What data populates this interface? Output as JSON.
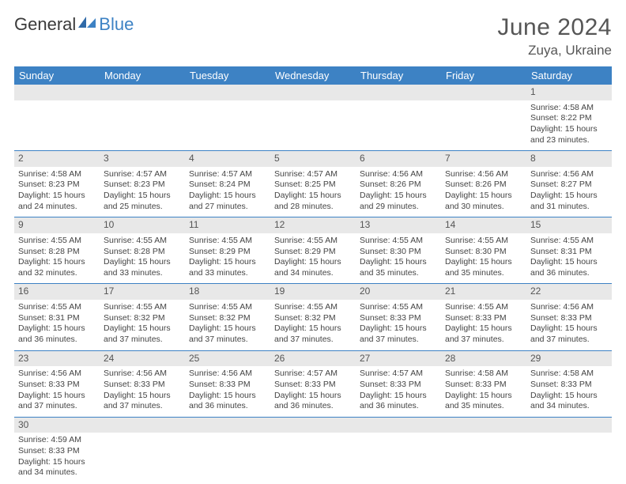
{
  "brand": {
    "name1": "General",
    "name2": "Blue"
  },
  "title": "June 2024",
  "location": "Zuya, Ukraine",
  "colors": {
    "header_bg": "#3d82c4",
    "header_text": "#ffffff",
    "daynum_bg": "#e8e8e8",
    "row_divider": "#3d82c4",
    "text": "#444444",
    "title_color": "#565656"
  },
  "typography": {
    "title_fontsize": 30,
    "location_fontsize": 17,
    "dayhead_fontsize": 13,
    "daynum_fontsize": 12,
    "cell_fontsize": 10.5,
    "font_family": "Arial"
  },
  "day_headers": [
    "Sunday",
    "Monday",
    "Tuesday",
    "Wednesday",
    "Thursday",
    "Friday",
    "Saturday"
  ],
  "weeks": [
    {
      "nums": [
        "",
        "",
        "",
        "",
        "",
        "",
        "1"
      ],
      "cells": [
        null,
        null,
        null,
        null,
        null,
        null,
        {
          "sr": "Sunrise: 4:58 AM",
          "ss": "Sunset: 8:22 PM",
          "d1": "Daylight: 15 hours",
          "d2": "and 23 minutes."
        }
      ]
    },
    {
      "nums": [
        "2",
        "3",
        "4",
        "5",
        "6",
        "7",
        "8"
      ],
      "cells": [
        {
          "sr": "Sunrise: 4:58 AM",
          "ss": "Sunset: 8:23 PM",
          "d1": "Daylight: 15 hours",
          "d2": "and 24 minutes."
        },
        {
          "sr": "Sunrise: 4:57 AM",
          "ss": "Sunset: 8:23 PM",
          "d1": "Daylight: 15 hours",
          "d2": "and 25 minutes."
        },
        {
          "sr": "Sunrise: 4:57 AM",
          "ss": "Sunset: 8:24 PM",
          "d1": "Daylight: 15 hours",
          "d2": "and 27 minutes."
        },
        {
          "sr": "Sunrise: 4:57 AM",
          "ss": "Sunset: 8:25 PM",
          "d1": "Daylight: 15 hours",
          "d2": "and 28 minutes."
        },
        {
          "sr": "Sunrise: 4:56 AM",
          "ss": "Sunset: 8:26 PM",
          "d1": "Daylight: 15 hours",
          "d2": "and 29 minutes."
        },
        {
          "sr": "Sunrise: 4:56 AM",
          "ss": "Sunset: 8:26 PM",
          "d1": "Daylight: 15 hours",
          "d2": "and 30 minutes."
        },
        {
          "sr": "Sunrise: 4:56 AM",
          "ss": "Sunset: 8:27 PM",
          "d1": "Daylight: 15 hours",
          "d2": "and 31 minutes."
        }
      ]
    },
    {
      "nums": [
        "9",
        "10",
        "11",
        "12",
        "13",
        "14",
        "15"
      ],
      "cells": [
        {
          "sr": "Sunrise: 4:55 AM",
          "ss": "Sunset: 8:28 PM",
          "d1": "Daylight: 15 hours",
          "d2": "and 32 minutes."
        },
        {
          "sr": "Sunrise: 4:55 AM",
          "ss": "Sunset: 8:28 PM",
          "d1": "Daylight: 15 hours",
          "d2": "and 33 minutes."
        },
        {
          "sr": "Sunrise: 4:55 AM",
          "ss": "Sunset: 8:29 PM",
          "d1": "Daylight: 15 hours",
          "d2": "and 33 minutes."
        },
        {
          "sr": "Sunrise: 4:55 AM",
          "ss": "Sunset: 8:29 PM",
          "d1": "Daylight: 15 hours",
          "d2": "and 34 minutes."
        },
        {
          "sr": "Sunrise: 4:55 AM",
          "ss": "Sunset: 8:30 PM",
          "d1": "Daylight: 15 hours",
          "d2": "and 35 minutes."
        },
        {
          "sr": "Sunrise: 4:55 AM",
          "ss": "Sunset: 8:30 PM",
          "d1": "Daylight: 15 hours",
          "d2": "and 35 minutes."
        },
        {
          "sr": "Sunrise: 4:55 AM",
          "ss": "Sunset: 8:31 PM",
          "d1": "Daylight: 15 hours",
          "d2": "and 36 minutes."
        }
      ]
    },
    {
      "nums": [
        "16",
        "17",
        "18",
        "19",
        "20",
        "21",
        "22"
      ],
      "cells": [
        {
          "sr": "Sunrise: 4:55 AM",
          "ss": "Sunset: 8:31 PM",
          "d1": "Daylight: 15 hours",
          "d2": "and 36 minutes."
        },
        {
          "sr": "Sunrise: 4:55 AM",
          "ss": "Sunset: 8:32 PM",
          "d1": "Daylight: 15 hours",
          "d2": "and 37 minutes."
        },
        {
          "sr": "Sunrise: 4:55 AM",
          "ss": "Sunset: 8:32 PM",
          "d1": "Daylight: 15 hours",
          "d2": "and 37 minutes."
        },
        {
          "sr": "Sunrise: 4:55 AM",
          "ss": "Sunset: 8:32 PM",
          "d1": "Daylight: 15 hours",
          "d2": "and 37 minutes."
        },
        {
          "sr": "Sunrise: 4:55 AM",
          "ss": "Sunset: 8:33 PM",
          "d1": "Daylight: 15 hours",
          "d2": "and 37 minutes."
        },
        {
          "sr": "Sunrise: 4:55 AM",
          "ss": "Sunset: 8:33 PM",
          "d1": "Daylight: 15 hours",
          "d2": "and 37 minutes."
        },
        {
          "sr": "Sunrise: 4:56 AM",
          "ss": "Sunset: 8:33 PM",
          "d1": "Daylight: 15 hours",
          "d2": "and 37 minutes."
        }
      ]
    },
    {
      "nums": [
        "23",
        "24",
        "25",
        "26",
        "27",
        "28",
        "29"
      ],
      "cells": [
        {
          "sr": "Sunrise: 4:56 AM",
          "ss": "Sunset: 8:33 PM",
          "d1": "Daylight: 15 hours",
          "d2": "and 37 minutes."
        },
        {
          "sr": "Sunrise: 4:56 AM",
          "ss": "Sunset: 8:33 PM",
          "d1": "Daylight: 15 hours",
          "d2": "and 37 minutes."
        },
        {
          "sr": "Sunrise: 4:56 AM",
          "ss": "Sunset: 8:33 PM",
          "d1": "Daylight: 15 hours",
          "d2": "and 36 minutes."
        },
        {
          "sr": "Sunrise: 4:57 AM",
          "ss": "Sunset: 8:33 PM",
          "d1": "Daylight: 15 hours",
          "d2": "and 36 minutes."
        },
        {
          "sr": "Sunrise: 4:57 AM",
          "ss": "Sunset: 8:33 PM",
          "d1": "Daylight: 15 hours",
          "d2": "and 36 minutes."
        },
        {
          "sr": "Sunrise: 4:58 AM",
          "ss": "Sunset: 8:33 PM",
          "d1": "Daylight: 15 hours",
          "d2": "and 35 minutes."
        },
        {
          "sr": "Sunrise: 4:58 AM",
          "ss": "Sunset: 8:33 PM",
          "d1": "Daylight: 15 hours",
          "d2": "and 34 minutes."
        }
      ]
    },
    {
      "nums": [
        "30",
        "",
        "",
        "",
        "",
        "",
        ""
      ],
      "cells": [
        {
          "sr": "Sunrise: 4:59 AM",
          "ss": "Sunset: 8:33 PM",
          "d1": "Daylight: 15 hours",
          "d2": "and 34 minutes."
        },
        null,
        null,
        null,
        null,
        null,
        null
      ]
    }
  ]
}
